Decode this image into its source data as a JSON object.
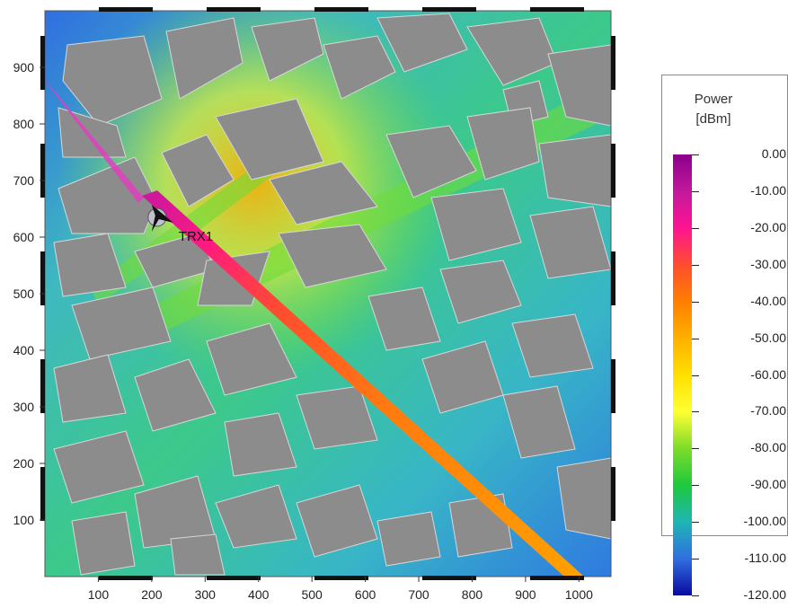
{
  "map": {
    "transmitter_label": "TRX1",
    "x_axis": {
      "ticks": [
        "100",
        "200",
        "300",
        "400",
        "500",
        "600",
        "700",
        "800",
        "900",
        "1000"
      ]
    },
    "y_axis": {
      "ticks": [
        "900",
        "800",
        "700",
        "600",
        "500",
        "400",
        "300",
        "200",
        "100"
      ]
    },
    "transmitter_position": {
      "x": 210,
      "y": 635
    },
    "beam_end": {
      "x": 990,
      "y": 0
    },
    "extent": {
      "x": [
        0,
        1060
      ],
      "y": [
        0,
        1000
      ]
    }
  },
  "legend": {
    "title_line1": "Power",
    "title_line2": "[dBm]",
    "ticks": [
      "0.00",
      "-10.00",
      "-20.00",
      "-30.00",
      "-40.00",
      "-50.00",
      "-60.00",
      "-70.00",
      "-80.00",
      "-90.00",
      "-100.00",
      "-110.00",
      "-120.00"
    ],
    "colors": [
      "#8b008b",
      "#c2189c",
      "#ff1493",
      "#ff4d2e",
      "#ff7f00",
      "#ffb000",
      "#ffe000",
      "#ffff33",
      "#7ddc2a",
      "#1ec93c",
      "#1fb5b5",
      "#2f6fe0",
      "#0a0aa0"
    ]
  }
}
